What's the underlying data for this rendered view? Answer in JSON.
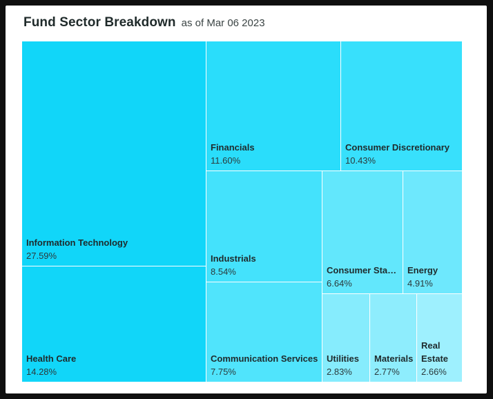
{
  "header": {
    "title": "Fund Sector Breakdown",
    "subtitle": "as of Mar 06 2023"
  },
  "chart_data": {
    "type": "treemap",
    "title": "Fund Sector Breakdown",
    "subtitle": "as of Mar 06 2023",
    "unit": "%",
    "sectors": [
      {
        "name": "Information Technology",
        "value": 27.59,
        "label": "27.59%",
        "color": "#11d6f9"
      },
      {
        "name": "Health Care",
        "value": 14.28,
        "label": "14.28%",
        "color": "#11d6f9"
      },
      {
        "name": "Financials",
        "value": 11.6,
        "label": "11.60%",
        "color": "#2addfb"
      },
      {
        "name": "Consumer Discretionary",
        "value": 10.43,
        "label": "10.43%",
        "color": "#38e0fc"
      },
      {
        "name": "Industrials",
        "value": 8.54,
        "label": "8.54%",
        "color": "#44e2fc"
      },
      {
        "name": "Communication Services",
        "value": 7.75,
        "label": "7.75%",
        "color": "#50e4fc"
      },
      {
        "name": "Consumer Staples",
        "value": 6.64,
        "label": "6.64%",
        "color": "#62e7fc"
      },
      {
        "name": "Energy",
        "value": 4.91,
        "label": "4.91%",
        "color": "#6ee8fd"
      },
      {
        "name": "Utilities",
        "value": 2.83,
        "label": "2.83%",
        "color": "#86ecfd"
      },
      {
        "name": "Materials",
        "value": 2.77,
        "label": "2.77%",
        "color": "#8eedfd"
      },
      {
        "name": "Real Estate",
        "value": 2.66,
        "label": "2.66%",
        "color": "#9ef0fe"
      }
    ]
  }
}
